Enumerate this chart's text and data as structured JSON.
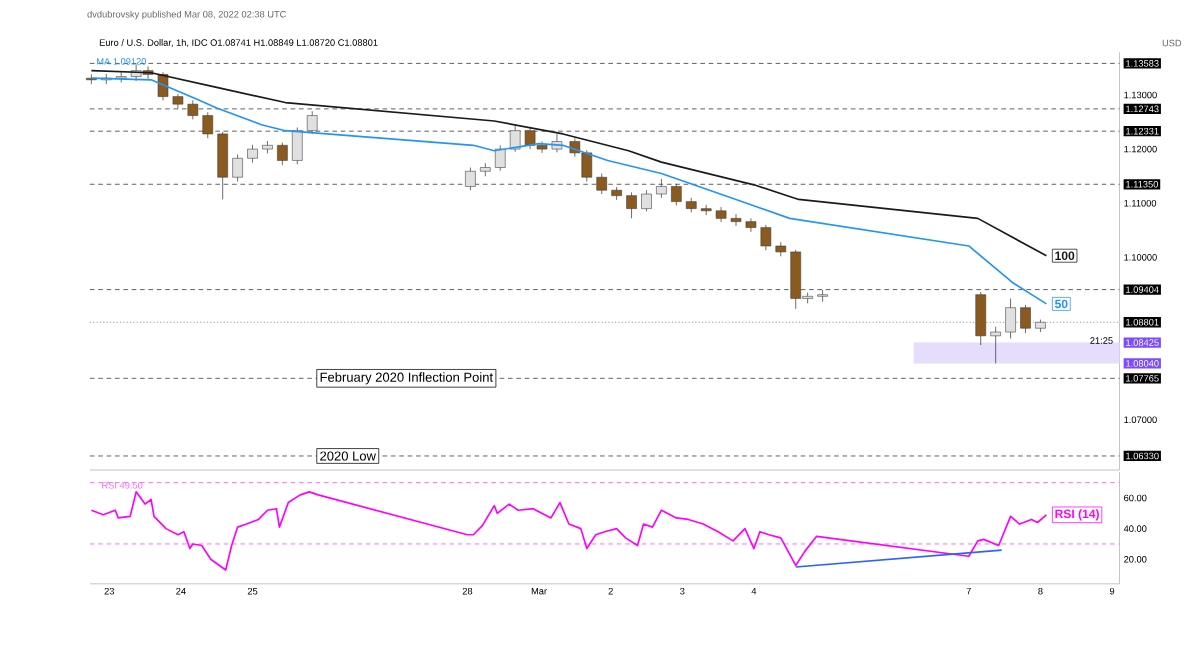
{
  "chart_data": [
    {
      "type": "candlestick",
      "title": "Euro / U.S. Dollar, 1h, IDC  O1.08741 H1.08849 L1.08720 C1.08801",
      "x": [
        "2022-02-22T18:00",
        "2022-02-22T23:00",
        "2022-02-23T04:00",
        "2022-02-23T09:00",
        "2022-02-23T13:00",
        "2022-02-23T18:00",
        "2022-02-23T23:00",
        "2022-02-24T04:00",
        "2022-02-24T09:00",
        "2022-02-24T14:00",
        "2022-02-24T19:00",
        "2022-02-25T00:00",
        "2022-02-25T05:00",
        "2022-02-25T10:00",
        "2022-02-25T15:00",
        "2022-02-25T20:00",
        "2022-02-28T01:00",
        "2022-02-28T06:00",
        "2022-02-28T11:00",
        "2022-02-28T16:00",
        "2022-02-28T21:00",
        "2022-03-01T01:00",
        "2022-03-01T06:00",
        "2022-03-01T12:00",
        "2022-03-01T16:00",
        "2022-03-01T21:00",
        "2022-03-02T02:00",
        "2022-03-02T07:00",
        "2022-03-02T12:00",
        "2022-03-02T17:00",
        "2022-03-02T22:00",
        "2022-03-03T03:00",
        "2022-03-03T08:00",
        "2022-03-03T13:00",
        "2022-03-03T18:00",
        "2022-03-03T23:00",
        "2022-03-04T04:00",
        "2022-03-04T09:00",
        "2022-03-04T14:00",
        "2022-03-04T18:00",
        "2022-03-04T23:00",
        "2022-03-07T04:00",
        "2022-03-07T09:00",
        "2022-03-07T14:00",
        "2022-03-07T19:00",
        "2022-03-08T00:00"
      ],
      "ohlc": [
        [
          1.1331,
          1.1338,
          1.132,
          1.1328
        ],
        [
          1.1328,
          1.1339,
          1.132,
          1.1331
        ],
        [
          1.1331,
          1.1342,
          1.1323,
          1.1334
        ],
        [
          1.1334,
          1.1356,
          1.1326,
          1.1345
        ],
        [
          1.1345,
          1.1353,
          1.133,
          1.1338
        ],
        [
          1.1338,
          1.1342,
          1.129,
          1.1297
        ],
        [
          1.1297,
          1.1302,
          1.1275,
          1.1283
        ],
        [
          1.1283,
          1.129,
          1.1255,
          1.1262
        ],
        [
          1.1262,
          1.1268,
          1.122,
          1.1228
        ],
        [
          1.1228,
          1.1232,
          1.1107,
          1.1148
        ],
        [
          1.1148,
          1.119,
          1.114,
          1.1183
        ],
        [
          1.1183,
          1.1208,
          1.1175,
          1.12
        ],
        [
          1.12,
          1.1215,
          1.1192,
          1.1207
        ],
        [
          1.1207,
          1.1212,
          1.117,
          1.1179
        ],
        [
          1.1179,
          1.124,
          1.1172,
          1.1234
        ],
        [
          1.1234,
          1.127,
          1.1228,
          1.1262
        ],
        [
          1.1131,
          1.1166,
          1.1124,
          1.1159
        ],
        [
          1.1159,
          1.1174,
          1.115,
          1.1166
        ],
        [
          1.1166,
          1.1207,
          1.116,
          1.12
        ],
        [
          1.12,
          1.1245,
          1.1195,
          1.1234
        ],
        [
          1.1234,
          1.124,
          1.12,
          1.1207
        ],
        [
          1.1207,
          1.1214,
          1.1193,
          1.12
        ],
        [
          1.12,
          1.1228,
          1.1194,
          1.1214
        ],
        [
          1.1214,
          1.122,
          1.1186,
          1.1193
        ],
        [
          1.1193,
          1.1198,
          1.114,
          1.1148
        ],
        [
          1.1148,
          1.1155,
          1.1117,
          1.1124
        ],
        [
          1.1124,
          1.113,
          1.1106,
          1.1114
        ],
        [
          1.1114,
          1.112,
          1.1072,
          1.109
        ],
        [
          1.109,
          1.1124,
          1.1085,
          1.1117
        ],
        [
          1.1117,
          1.1145,
          1.111,
          1.1131
        ],
        [
          1.1131,
          1.1136,
          1.1096,
          1.1103
        ],
        [
          1.1103,
          1.111,
          1.1083,
          1.109
        ],
        [
          1.109,
          1.1097,
          1.1078,
          1.1086
        ],
        [
          1.1086,
          1.1093,
          1.1065,
          1.1072
        ],
        [
          1.1072,
          1.108,
          1.1058,
          1.1066
        ],
        [
          1.1066,
          1.1072,
          1.1047,
          1.1055
        ],
        [
          1.1055,
          1.106,
          1.1013,
          1.1021
        ],
        [
          1.1021,
          1.1028,
          1.1002,
          1.101
        ],
        [
          1.101,
          1.1014,
          1.0905,
          1.0924
        ],
        [
          1.0924,
          1.0935,
          1.0915,
          1.0928
        ],
        [
          1.0928,
          1.094,
          1.0918,
          1.0931
        ],
        [
          1.0931,
          1.0936,
          1.0838,
          1.0855
        ],
        [
          1.0855,
          1.0872,
          1.0804,
          1.0862
        ],
        [
          1.0862,
          1.0924,
          1.085,
          1.0907
        ],
        [
          1.0907,
          1.0912,
          1.086,
          1.0869
        ],
        [
          1.0869,
          1.0885,
          1.0862,
          1.088
        ]
      ],
      "colors": [
        "#8b5a1e",
        "#e0e0e0",
        "#e0e0e0",
        "#e0e0e0",
        "#8b5a1e",
        "#8b5a1e",
        "#8b5a1e",
        "#8b5a1e",
        "#8b5a1e",
        "#8b5a1e",
        "#e0e0e0",
        "#e0e0e0",
        "#e0e0e0",
        "#8b5a1e",
        "#e0e0e0",
        "#e0e0e0",
        "#e0e0e0",
        "#e0e0e0",
        "#e0e0e0",
        "#e0e0e0",
        "#8b5a1e",
        "#8b5a1e",
        "#e0e0e0",
        "#8b5a1e",
        "#8b5a1e",
        "#8b5a1e",
        "#8b5a1e",
        "#8b5a1e",
        "#e0e0e0",
        "#e0e0e0",
        "#8b5a1e",
        "#8b5a1e",
        "#8b5a1e",
        "#8b5a1e",
        "#8b5a1e",
        "#8b5a1e",
        "#8b5a1e",
        "#8b5a1e",
        "#8b5a1e",
        "#e0e0e0",
        "#e0e0e0",
        "#8b5a1e",
        "#e0e0e0",
        "#e0e0e0",
        "#8b5a1e",
        "#e0e0e0"
      ],
      "series": [
        {
          "name": "100",
          "type": "line",
          "color": "#1a1a1a",
          "x": [
            "2022-02-22T18:00",
            "2022-02-23T14:00",
            "2022-02-24T12:00",
            "2022-02-25T11:00",
            "2022-02-28T09:00",
            "2022-03-01T08:00",
            "2022-03-02T06:00",
            "2022-03-02T17:00",
            "2022-03-04T00:00",
            "2022-03-04T15:00",
            "2022-03-07T03:00",
            "2022-03-08T02:00"
          ],
          "values": [
            1.1345,
            1.1341,
            1.1314,
            1.1286,
            1.1252,
            1.1228,
            1.1197,
            1.1176,
            1.1134,
            1.1107,
            1.1072,
            1.1003
          ]
        },
        {
          "name": "50",
          "type": "line",
          "color": "#2196f3",
          "x": [
            "2022-02-22T18:00",
            "2022-02-23T14:00",
            "2022-02-24T05:00",
            "2022-02-24T12:00",
            "2022-02-25T03:00",
            "2022-02-25T11:00",
            "2022-02-28T02:00",
            "2022-02-28T09:00",
            "2022-03-01T00:00",
            "2022-03-01T08:00",
            "2022-03-01T23:00",
            "2022-03-02T17:00",
            "2022-03-03T18:00",
            "2022-03-04T12:00",
            "2022-03-07T00:00",
            "2022-03-07T15:00",
            "2022-03-08T02:00"
          ],
          "values": [
            1.1331,
            1.1328,
            1.1293,
            1.1276,
            1.1245,
            1.1234,
            1.1207,
            1.1197,
            1.121,
            1.1207,
            1.1179,
            1.1155,
            1.1107,
            1.1072,
            1.1021,
            1.0952,
            1.0914
          ]
        }
      ],
      "xlim": [
        "2022-02-22T17:30",
        "2022-03-09T02:30"
      ],
      "ylim": [
        1.0607,
        1.1379
      ],
      "yticks": [
        {
          "value": 1.13583,
          "label": "1.13583"
        },
        {
          "value": 1.13,
          "label": "1.13000"
        },
        {
          "value": 1.12743,
          "label": "1.12743"
        },
        {
          "value": 1.12331,
          "label": "1.12331"
        },
        {
          "value": 1.12,
          "label": "1.12000"
        },
        {
          "value": 1.1135,
          "label": "1.11350"
        },
        {
          "value": 1.11,
          "label": "1.11000"
        },
        {
          "value": 1.1,
          "label": "1.10000"
        },
        {
          "value": 1.09404,
          "label": "1.09404"
        },
        {
          "value": 1.08801,
          "label": "1.08801"
        },
        {
          "value": 1.08425,
          "label": "1.08425"
        },
        {
          "value": 1.0804,
          "label": "1.08040"
        },
        {
          "value": 1.07765,
          "label": "1.07765"
        },
        {
          "value": 1.07,
          "label": "1.07000"
        },
        {
          "value": 1.0633,
          "label": "1.06330"
        }
      ],
      "tick_labels": "y",
      "ref_lines": [
        {
          "axis": "y",
          "value": 1.13583,
          "line_style": "dashed",
          "color": "#555555"
        },
        {
          "axis": "y",
          "value": 1.12743,
          "line_style": "dashed",
          "color": "#555555"
        },
        {
          "axis": "y",
          "value": 1.12331,
          "line_style": "dashed",
          "color": "#555555"
        },
        {
          "axis": "y",
          "value": 1.1135,
          "line_style": "dashed",
          "color": "#555555"
        },
        {
          "axis": "y",
          "value": 1.09404,
          "line_style": "dashed",
          "color": "#555555"
        },
        {
          "axis": "y",
          "value": 1.08801,
          "line_style": "dotted",
          "color": "#888888"
        },
        {
          "axis": "y",
          "value": 1.07765,
          "line_style": "dashed",
          "color": "#555555",
          "label": "February 2020 Inflection Point"
        },
        {
          "axis": "y",
          "value": 1.0633,
          "line_style": "dashed",
          "color": "#555555",
          "label": "2020 Low"
        }
      ],
      "bands": [
        {
          "axis": "y",
          "from": 1.0804,
          "to": 1.08425,
          "color": "#e6dcfb"
        }
      ],
      "annotations": [
        "dvdubrovsky published Mar 08, 2022 02:38 UTC",
        "MA 1.09120",
        "21:25",
        "USD"
      ]
    },
    {
      "type": "line",
      "series": [
        {
          "name": "RSI (14)",
          "color": "#ff00ff",
          "x": [
            "2022-02-22T18:00",
            "2022-02-22T22:00",
            "2022-02-23T02:00",
            "2022-02-23T03:00",
            "2022-02-23T07:00",
            "2022-02-23T09:00",
            "2022-02-23T12:00",
            "2022-02-23T14:00",
            "2022-02-23T15:00",
            "2022-02-23T19:00",
            "2022-02-23T23:00",
            "2022-02-24T01:00",
            "2022-02-24T03:00",
            "2022-02-24T04:00",
            "2022-02-24T07:00",
            "2022-02-24T10:00",
            "2022-02-24T15:00",
            "2022-02-24T17:00",
            "2022-02-24T19:00",
            "2022-02-24T22:00",
            "2022-02-25T02:00",
            "2022-02-25T05:00",
            "2022-02-25T08:00",
            "2022-02-25T09:00",
            "2022-02-25T12:00",
            "2022-02-25T16:00",
            "2022-02-25T19:00",
            "2022-02-25T22:00",
            "2022-02-28T00:00",
            "2022-02-28T02:00",
            "2022-02-28T05:00",
            "2022-02-28T09:00",
            "2022-02-28T10:00",
            "2022-02-28T14:00",
            "2022-02-28T17:00",
            "2022-02-28T22:00",
            "2022-03-01T04:00",
            "2022-03-01T07:00",
            "2022-03-01T10:00",
            "2022-03-01T14:00",
            "2022-03-01T16:00",
            "2022-03-01T19:00",
            "2022-03-01T22:00",
            "2022-03-02T02:00",
            "2022-03-02T05:00",
            "2022-03-02T09:00",
            "2022-03-02T11:00",
            "2022-03-02T14:00",
            "2022-03-02T17:00",
            "2022-03-02T22:00",
            "2022-03-03T02:00",
            "2022-03-03T07:00",
            "2022-03-03T12:00",
            "2022-03-03T17:00",
            "2022-03-03T21:00",
            "2022-03-04T00:00",
            "2022-03-04T02:00",
            "2022-03-04T05:00",
            "2022-03-04T09:00",
            "2022-03-04T14:00",
            "2022-03-04T17:00",
            "2022-03-04T21:00",
            "2022-03-07T00:00",
            "2022-03-07T03:00",
            "2022-03-07T05:00",
            "2022-03-07T10:00",
            "2022-03-07T14:00",
            "2022-03-07T17:00",
            "2022-03-07T21:00",
            "2022-03-07T23:00",
            "2022-03-08T02:00"
          ],
          "values": [
            52,
            49,
            52,
            47,
            48,
            64,
            56,
            59,
            48,
            40,
            36,
            38,
            27,
            30,
            29,
            20,
            13,
            29,
            41,
            43,
            46,
            52,
            53,
            41,
            57,
            62,
            64,
            62,
            36,
            36,
            42,
            55,
            50,
            56,
            52,
            53,
            47,
            57,
            43,
            40,
            27,
            36,
            38,
            40,
            34,
            29,
            43,
            41,
            52,
            47,
            46,
            43,
            38,
            32,
            40,
            27,
            38,
            36,
            34,
            16,
            25,
            35,
            22,
            32,
            33,
            29,
            48,
            43,
            46,
            44,
            49
          ]
        },
        {
          "type": "line",
          "color": "#2962ff",
          "x": [
            "2022-03-04T14:00",
            "2022-03-07T11:00"
          ],
          "values": [
            15,
            26
          ]
        }
      ],
      "xlim": [
        "2022-02-22T17:30",
        "2022-03-09T02:30"
      ],
      "ylim": [
        4,
        77
      ],
      "xticks": [
        {
          "value": "2022-02-23",
          "label": "23"
        },
        {
          "value": "2022-02-24",
          "label": "24"
        },
        {
          "value": "2022-02-25",
          "label": "25"
        },
        {
          "value": "2022-02-28",
          "label": "28"
        },
        {
          "value": "2022-03-01",
          "label": "Mar"
        },
        {
          "value": "2022-03-02",
          "label": "2"
        },
        {
          "value": "2022-03-03",
          "label": "3"
        },
        {
          "value": "2022-03-04",
          "label": "4"
        },
        {
          "value": "2022-03-07",
          "label": "7"
        },
        {
          "value": "2022-03-08",
          "label": "8"
        },
        {
          "value": "2022-03-09",
          "label": "9"
        }
      ],
      "yticks": [
        {
          "value": 60,
          "label": "60.00"
        },
        {
          "value": 40,
          "label": "40.00"
        },
        {
          "value": 20,
          "label": "20.00"
        }
      ],
      "ref_lines": [
        {
          "axis": "y",
          "value": 70,
          "line_style": "dashed",
          "color": "#ff66ff"
        },
        {
          "axis": "y",
          "value": 30,
          "line_style": "dashed",
          "color": "#ff66ff"
        }
      ],
      "annotations": [
        "RSI 49.50"
      ]
    }
  ]
}
